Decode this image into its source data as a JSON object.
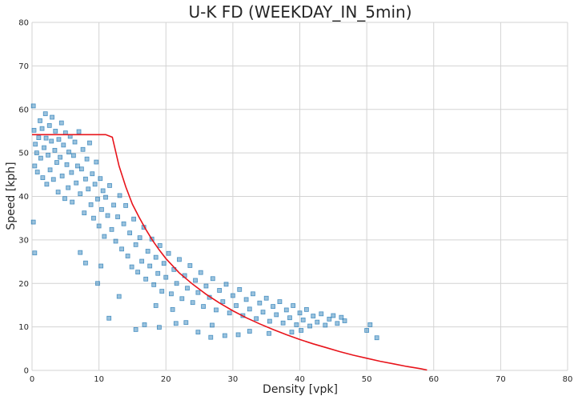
{
  "chart_data": {
    "type": "scatter",
    "title": "U-K FD (WEEKDAY_IN_5min)",
    "xlabel": "Density [vpk]",
    "ylabel": "Speed [kph]",
    "xlim": [
      0,
      80
    ],
    "ylim": [
      0,
      80
    ],
    "xticks": [
      0,
      10,
      20,
      30,
      40,
      50,
      60,
      70,
      80
    ],
    "yticks": [
      0,
      10,
      20,
      30,
      40,
      50,
      60,
      70,
      80
    ],
    "grid": true,
    "colors": {
      "points": "#1f77b4",
      "curve": "#e8141b",
      "grid": "#d3d3d3"
    },
    "series": [
      {
        "type": "scatter",
        "marker": "square",
        "points": [
          [
            0.2,
            60.8
          ],
          [
            0.3,
            55.2
          ],
          [
            0.4,
            47.0
          ],
          [
            0.2,
            34.1
          ],
          [
            0.4,
            27.0
          ],
          [
            0.5,
            52.0
          ],
          [
            0.7,
            50.0
          ],
          [
            0.8,
            45.6
          ],
          [
            1.0,
            53.5
          ],
          [
            1.2,
            57.4
          ],
          [
            1.3,
            48.8
          ],
          [
            1.5,
            55.6
          ],
          [
            1.6,
            44.3
          ],
          [
            1.8,
            51.2
          ],
          [
            2.0,
            59.0
          ],
          [
            2.1,
            53.4
          ],
          [
            2.2,
            42.8
          ],
          [
            2.4,
            49.5
          ],
          [
            2.6,
            56.3
          ],
          [
            2.7,
            46.1
          ],
          [
            2.9,
            52.7
          ],
          [
            3.0,
            58.2
          ],
          [
            3.2,
            43.9
          ],
          [
            3.4,
            50.6
          ],
          [
            3.5,
            55.0
          ],
          [
            3.7,
            47.8
          ],
          [
            3.9,
            41.0
          ],
          [
            4.0,
            53.1
          ],
          [
            4.2,
            49.0
          ],
          [
            4.4,
            56.9
          ],
          [
            4.5,
            44.7
          ],
          [
            4.7,
            51.8
          ],
          [
            4.9,
            39.5
          ],
          [
            5.0,
            54.6
          ],
          [
            5.2,
            47.3
          ],
          [
            5.4,
            42.0
          ],
          [
            5.5,
            50.2
          ],
          [
            5.7,
            53.8
          ],
          [
            5.9,
            45.5
          ],
          [
            6.0,
            38.7
          ],
          [
            6.2,
            49.4
          ],
          [
            6.4,
            52.5
          ],
          [
            6.6,
            43.1
          ],
          [
            6.8,
            47.0
          ],
          [
            7.0,
            54.9
          ],
          [
            7.2,
            40.6
          ],
          [
            7.4,
            46.3
          ],
          [
            7.6,
            50.8
          ],
          [
            7.8,
            36.2
          ],
          [
            8.0,
            44.0
          ],
          [
            8.2,
            48.6
          ],
          [
            8.4,
            41.7
          ],
          [
            8.6,
            52.3
          ],
          [
            8.8,
            38.1
          ],
          [
            9.0,
            45.2
          ],
          [
            9.2,
            35.0
          ],
          [
            9.4,
            42.8
          ],
          [
            9.6,
            47.9
          ],
          [
            9.8,
            39.4
          ],
          [
            10.0,
            33.2
          ],
          [
            10.2,
            44.1
          ],
          [
            10.4,
            37.0
          ],
          [
            10.6,
            41.3
          ],
          [
            10.8,
            30.8
          ],
          [
            11.0,
            39.8
          ],
          [
            11.3,
            35.6
          ],
          [
            11.6,
            42.5
          ],
          [
            11.9,
            32.4
          ],
          [
            12.2,
            38.0
          ],
          [
            12.5,
            29.7
          ],
          [
            12.8,
            35.3
          ],
          [
            13.1,
            40.2
          ],
          [
            13.4,
            27.9
          ],
          [
            13.7,
            33.7
          ],
          [
            14.0,
            37.9
          ],
          [
            14.3,
            26.3
          ],
          [
            14.6,
            31.6
          ],
          [
            14.9,
            23.8
          ],
          [
            15.2,
            34.8
          ],
          [
            15.5,
            28.9
          ],
          [
            15.8,
            22.6
          ],
          [
            16.1,
            30.5
          ],
          [
            16.4,
            25.1
          ],
          [
            16.7,
            32.9
          ],
          [
            17.0,
            21.0
          ],
          [
            17.3,
            27.4
          ],
          [
            17.6,
            24.0
          ],
          [
            17.9,
            30.2
          ],
          [
            18.2,
            19.7
          ],
          [
            18.5,
            26.0
          ],
          [
            18.8,
            22.3
          ],
          [
            19.1,
            28.7
          ],
          [
            19.4,
            18.2
          ],
          [
            19.7,
            24.6
          ],
          [
            20.0,
            21.4
          ],
          [
            20.4,
            26.9
          ],
          [
            20.8,
            17.6
          ],
          [
            21.2,
            23.2
          ],
          [
            21.6,
            20.0
          ],
          [
            22.0,
            25.5
          ],
          [
            22.4,
            16.5
          ],
          [
            22.8,
            21.8
          ],
          [
            23.2,
            18.9
          ],
          [
            23.6,
            24.1
          ],
          [
            24.0,
            15.6
          ],
          [
            24.4,
            20.7
          ],
          [
            24.8,
            17.9
          ],
          [
            25.2,
            22.5
          ],
          [
            25.6,
            14.7
          ],
          [
            26.0,
            19.4
          ],
          [
            26.5,
            16.8
          ],
          [
            27.0,
            21.1
          ],
          [
            27.5,
            13.9
          ],
          [
            28.0,
            18.4
          ],
          [
            28.5,
            15.8
          ],
          [
            29.0,
            19.8
          ],
          [
            29.5,
            13.2
          ],
          [
            30.0,
            17.2
          ],
          [
            30.5,
            14.9
          ],
          [
            31.0,
            18.6
          ],
          [
            31.5,
            12.6
          ],
          [
            32.0,
            16.3
          ],
          [
            32.5,
            14.1
          ],
          [
            33.0,
            17.6
          ],
          [
            33.5,
            11.9
          ],
          [
            34.0,
            15.5
          ],
          [
            34.5,
            13.4
          ],
          [
            35.0,
            16.6
          ],
          [
            35.5,
            11.3
          ],
          [
            36.0,
            14.7
          ],
          [
            36.5,
            12.8
          ],
          [
            37.0,
            15.8
          ],
          [
            37.5,
            10.9
          ],
          [
            38.0,
            13.9
          ],
          [
            38.5,
            12.1
          ],
          [
            39.0,
            14.9
          ],
          [
            39.5,
            10.5
          ],
          [
            40.0,
            13.2
          ],
          [
            40.5,
            11.6
          ],
          [
            41.0,
            14.0
          ],
          [
            41.5,
            10.2
          ],
          [
            42.0,
            12.5
          ],
          [
            42.6,
            11.1
          ],
          [
            43.2,
            13.0
          ],
          [
            43.8,
            10.4
          ],
          [
            44.4,
            11.8
          ],
          [
            45.0,
            12.6
          ],
          [
            45.6,
            10.8
          ],
          [
            46.2,
            12.2
          ],
          [
            46.7,
            11.4
          ],
          [
            13.0,
            17.0
          ],
          [
            11.5,
            12.0
          ],
          [
            16.8,
            10.5
          ],
          [
            15.5,
            9.4
          ],
          [
            23.0,
            11.0
          ],
          [
            24.8,
            8.8
          ],
          [
            26.7,
            7.6
          ],
          [
            28.8,
            8.0
          ],
          [
            30.8,
            8.2
          ],
          [
            32.5,
            9.0
          ],
          [
            35.4,
            8.5
          ],
          [
            38.8,
            8.8
          ],
          [
            40.2,
            9.2
          ],
          [
            50.0,
            9.2
          ],
          [
            50.5,
            10.5
          ],
          [
            51.5,
            7.5
          ],
          [
            9.8,
            20.0
          ],
          [
            8.0,
            24.7
          ],
          [
            7.2,
            27.1
          ],
          [
            10.3,
            24.0
          ],
          [
            21.0,
            14.0
          ],
          [
            18.5,
            14.9
          ],
          [
            26.9,
            10.4
          ],
          [
            21.5,
            10.8
          ],
          [
            19.0,
            9.9
          ]
        ]
      },
      {
        "type": "line",
        "points": [
          [
            0,
            54.2
          ],
          [
            11.0,
            54.2
          ],
          [
            12.0,
            53.6
          ],
          [
            13.0,
            47.0
          ],
          [
            14.0,
            42.2
          ],
          [
            15.0,
            38.2
          ],
          [
            16.0,
            35.2
          ],
          [
            17.0,
            32.4
          ],
          [
            18.0,
            29.9
          ],
          [
            19.0,
            27.7
          ],
          [
            20.0,
            25.7
          ],
          [
            22.0,
            22.4
          ],
          [
            24.0,
            19.8
          ],
          [
            26.0,
            17.5
          ],
          [
            28.0,
            15.5
          ],
          [
            30.0,
            13.7
          ],
          [
            32.0,
            12.1
          ],
          [
            34.0,
            10.7
          ],
          [
            36.0,
            9.4
          ],
          [
            38.0,
            8.2
          ],
          [
            40.0,
            7.1
          ],
          [
            42.0,
            6.1
          ],
          [
            44.0,
            5.2
          ],
          [
            46.0,
            4.3
          ],
          [
            48.0,
            3.5
          ],
          [
            50.0,
            2.8
          ],
          [
            52.0,
            2.1
          ],
          [
            54.0,
            1.5
          ],
          [
            56.0,
            0.9
          ],
          [
            58.0,
            0.4
          ],
          [
            59.0,
            0.1
          ]
        ]
      }
    ]
  }
}
